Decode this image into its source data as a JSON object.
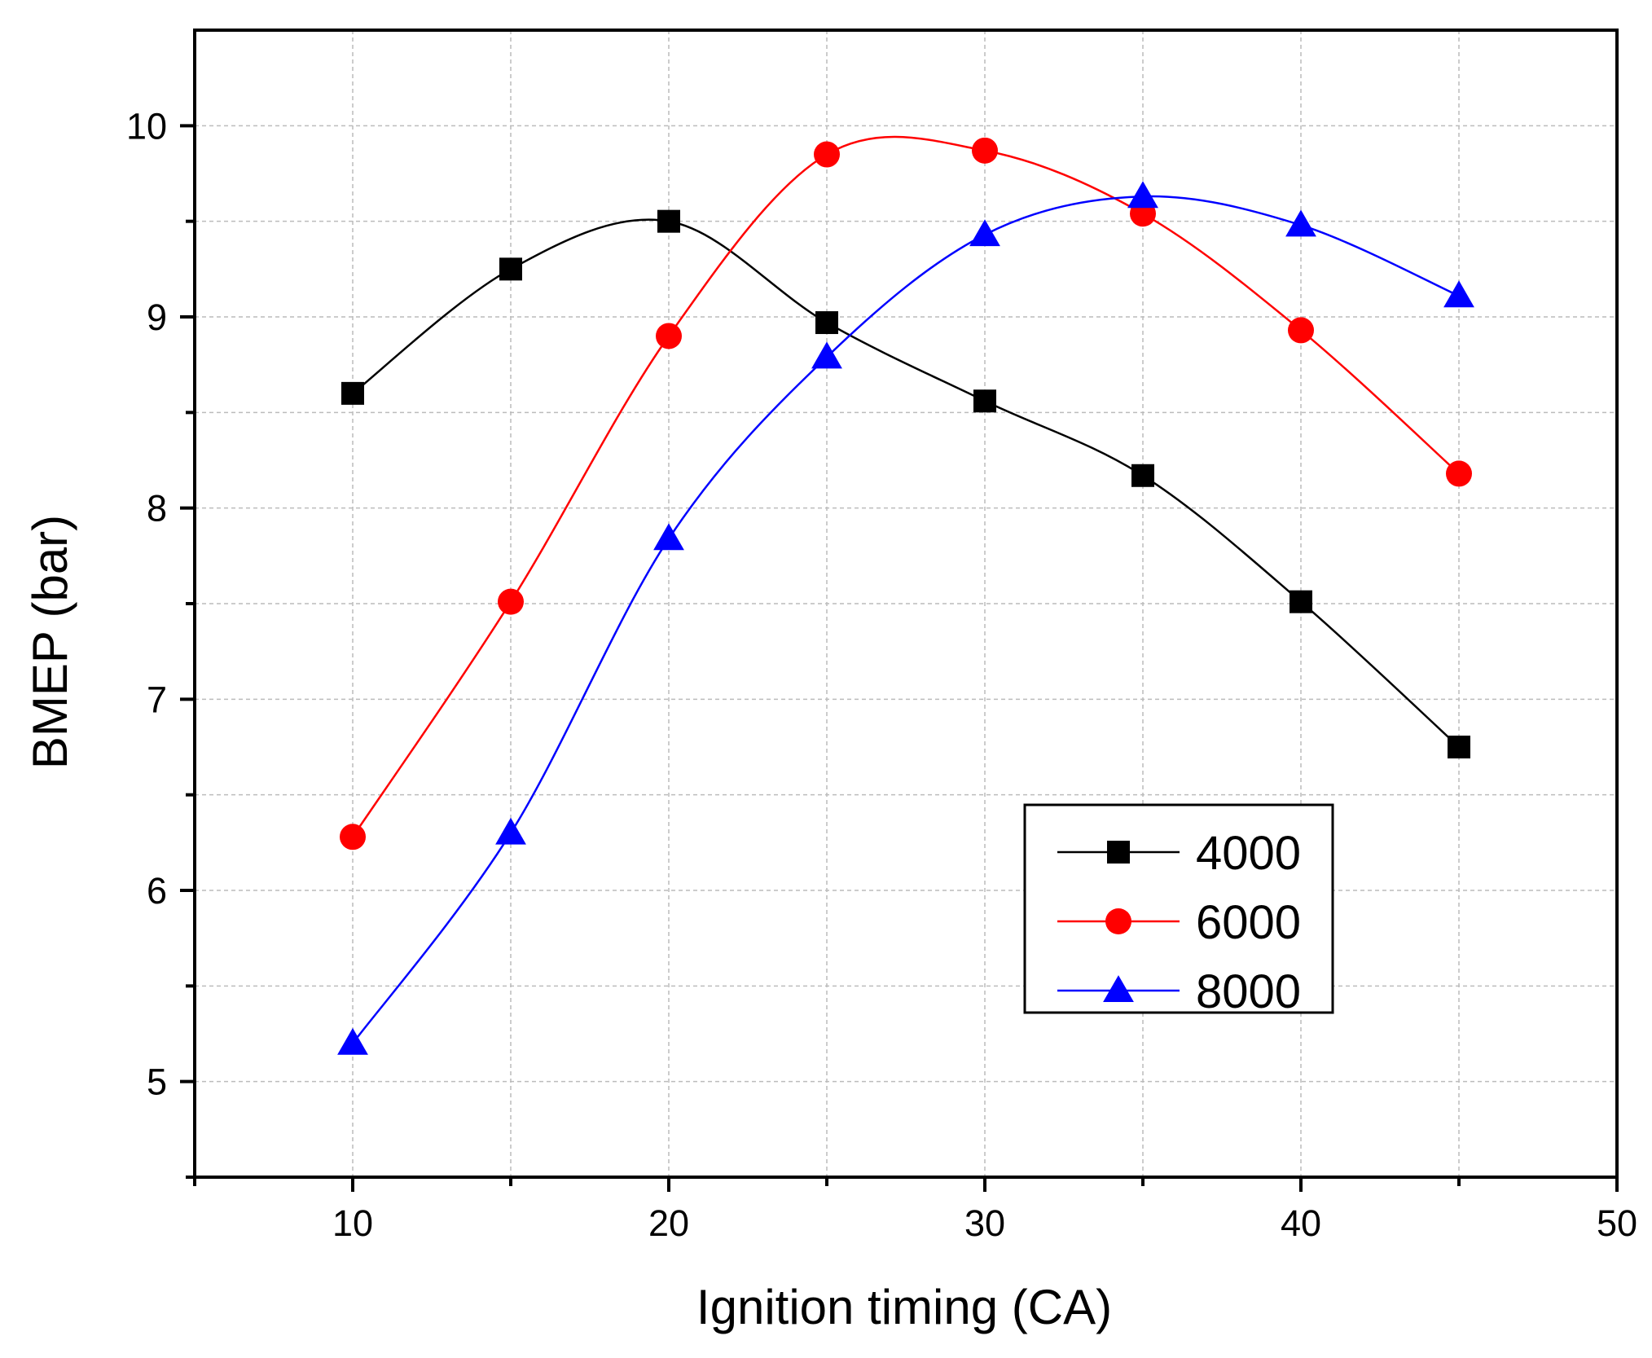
{
  "chart_data": {
    "type": "line",
    "title": "",
    "xlabel": "Ignition timing (CA)",
    "ylabel": "BMEP (bar)",
    "xlim": [
      5,
      50
    ],
    "ylim": [
      4.5,
      10.5
    ],
    "xticks": [
      10,
      20,
      30,
      40,
      50
    ],
    "yticks": [
      5,
      6,
      7,
      8,
      9,
      10
    ],
    "x_minor_ticks": [
      5,
      15,
      25,
      35,
      45
    ],
    "y_minor_ticks": [
      4.5,
      5.5,
      6.5,
      7.5,
      8.5,
      9.5
    ],
    "grid": true,
    "legend_position": "lower-right",
    "x": [
      10,
      15,
      20,
      25,
      30,
      35,
      40,
      45
    ],
    "series": [
      {
        "name": "4000",
        "color": "#000000",
        "marker": "square",
        "values": [
          8.6,
          9.25,
          9.5,
          8.97,
          8.56,
          8.17,
          7.51,
          6.75
        ]
      },
      {
        "name": "6000",
        "color": "#ff0000",
        "marker": "circle",
        "values": [
          6.28,
          7.51,
          8.9,
          9.85,
          9.87,
          9.54,
          8.93,
          8.18
        ]
      },
      {
        "name": "8000",
        "color": "#0000ff",
        "marker": "triangle",
        "values": [
          5.2,
          6.3,
          7.84,
          8.79,
          9.43,
          9.63,
          9.48,
          9.11
        ]
      }
    ]
  }
}
